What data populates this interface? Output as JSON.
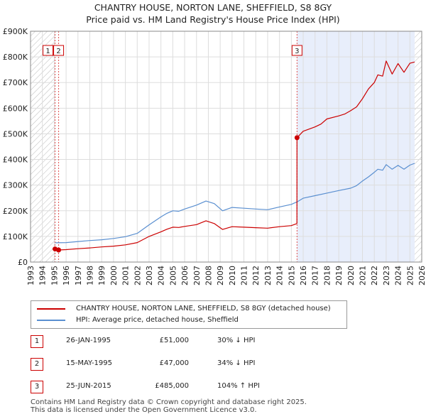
{
  "title_line1": "CHANTRY HOUSE, NORTON LANE, SHEFFIELD, S8 8GY",
  "title_line2": "Price paid vs. HM Land Registry's House Price Index (HPI)",
  "colors": {
    "property": "#cc0000",
    "hpi": "#5a8fd0",
    "shade": "#e8eefb",
    "hatch": "#bbbbbb",
    "sale_vline": "#e05050"
  },
  "chart_data": {
    "type": "line",
    "title": "Price paid vs. HM Land Registry's House Price Index (HPI)",
    "xlim": [
      1993,
      2026
    ],
    "ylim": [
      0,
      900000
    ],
    "xticks": [
      1993,
      1994,
      1995,
      1996,
      1997,
      1998,
      1999,
      2000,
      2001,
      2002,
      2003,
      2004,
      2005,
      2006,
      2007,
      2008,
      2009,
      2010,
      2011,
      2012,
      2013,
      2014,
      2015,
      2016,
      2017,
      2018,
      2019,
      2020,
      2021,
      2022,
      2023,
      2024,
      2025,
      2026
    ],
    "yticks": [
      0,
      100000,
      200000,
      300000,
      400000,
      500000,
      600000,
      700000,
      800000,
      900000
    ],
    "ytick_labels": [
      "£0",
      "£100K",
      "£200K",
      "£300K",
      "£400K",
      "£500K",
      "£600K",
      "£700K",
      "£800K",
      "£900K"
    ],
    "data_start": 1995.07,
    "data_end": 2025.4,
    "series": [
      {
        "name": "CHANTRY HOUSE, NORTON LANE, SHEFFIELD, S8 8GY (detached house)",
        "color": "#cc0000",
        "x": [
          1995.07,
          1995.37,
          1996,
          1997,
          1998,
          1999,
          2000,
          2001,
          2002,
          2003,
          2004,
          2004.5,
          2005,
          2005.5,
          2006,
          2007,
          2007.8,
          2008.5,
          2009.2,
          2010,
          2011,
          2012,
          2013,
          2014,
          2015,
          2015.47,
          2015.48,
          2016,
          2017,
          2017.5,
          2018,
          2019,
          2019.5,
          2020,
          2020.5,
          2021,
          2021.5,
          2022,
          2022.3,
          2022.7,
          2023,
          2023.5,
          2024,
          2024.5,
          2025,
          2025.4
        ],
        "y": [
          51000,
          47000,
          48500,
          52000,
          55000,
          59000,
          62000,
          67000,
          76000,
          100000,
          118000,
          128000,
          136000,
          135000,
          139000,
          146000,
          161000,
          150000,
          127000,
          138000,
          136000,
          134000,
          132000,
          138000,
          142000,
          150000,
          485000,
          510000,
          527000,
          538000,
          558000,
          570000,
          577000,
          590000,
          605000,
          637000,
          675000,
          700000,
          730000,
          725000,
          784000,
          733000,
          774000,
          740000,
          775000,
          780000
        ]
      },
      {
        "name": "HPI: Average price, detached house, Sheffield",
        "color": "#5a8fd0",
        "x": [
          1995.07,
          1996,
          1997,
          1998,
          1999,
          2000,
          2001,
          2002,
          2003,
          2004,
          2004.5,
          2005,
          2005.5,
          2006,
          2007,
          2007.8,
          2008.5,
          2009.2,
          2010,
          2011,
          2012,
          2013,
          2014,
          2015,
          2015.5,
          2016,
          2017,
          2018,
          2019,
          2020,
          2020.5,
          2021,
          2021.5,
          2022,
          2022.3,
          2022.7,
          2023,
          2023.5,
          2024,
          2024.5,
          2025,
          2025.4
        ],
        "y": [
          75000,
          76000,
          80000,
          84000,
          87000,
          92000,
          99000,
          112000,
          145000,
          176000,
          190000,
          200000,
          198000,
          207000,
          222000,
          238000,
          228000,
          200000,
          213000,
          210000,
          207000,
          204000,
          215000,
          225000,
          235000,
          249000,
          259000,
          269000,
          279000,
          288000,
          298000,
          316000,
          332000,
          350000,
          362000,
          358000,
          380000,
          362000,
          377000,
          362000,
          378000,
          385000
        ]
      }
    ],
    "sales": [
      {
        "id": "1",
        "date": "26-JAN-1995",
        "price": "£51,000",
        "hpi": "30% ↓ HPI",
        "x": 1995.07,
        "y": 51000
      },
      {
        "id": "2",
        "date": "15-MAY-1995",
        "price": "£47,000",
        "hpi": "34% ↓ HPI",
        "x": 1995.37,
        "y": 47000
      },
      {
        "id": "3",
        "date": "25-JUN-2015",
        "price": "£485,000",
        "hpi": "104% ↑ HPI",
        "x": 2015.48,
        "y": 485000
      }
    ]
  },
  "legend": {
    "property": "CHANTRY HOUSE, NORTON LANE, SHEFFIELD, S8 8GY (detached house)",
    "hpi": "HPI: Average price, detached house, Sheffield"
  },
  "sales_table": [
    {
      "num": "1",
      "date": "26-JAN-1995",
      "price": "£51,000",
      "hpi": "30% ↓ HPI"
    },
    {
      "num": "2",
      "date": "15-MAY-1995",
      "price": "£47,000",
      "hpi": "34% ↓ HPI"
    },
    {
      "num": "3",
      "date": "25-JUN-2015",
      "price": "£485,000",
      "hpi": "104% ↑ HPI"
    }
  ],
  "footer_line1": "Contains HM Land Registry data © Crown copyright and database right 2025.",
  "footer_line2": "This data is licensed under the Open Government Licence v3.0."
}
